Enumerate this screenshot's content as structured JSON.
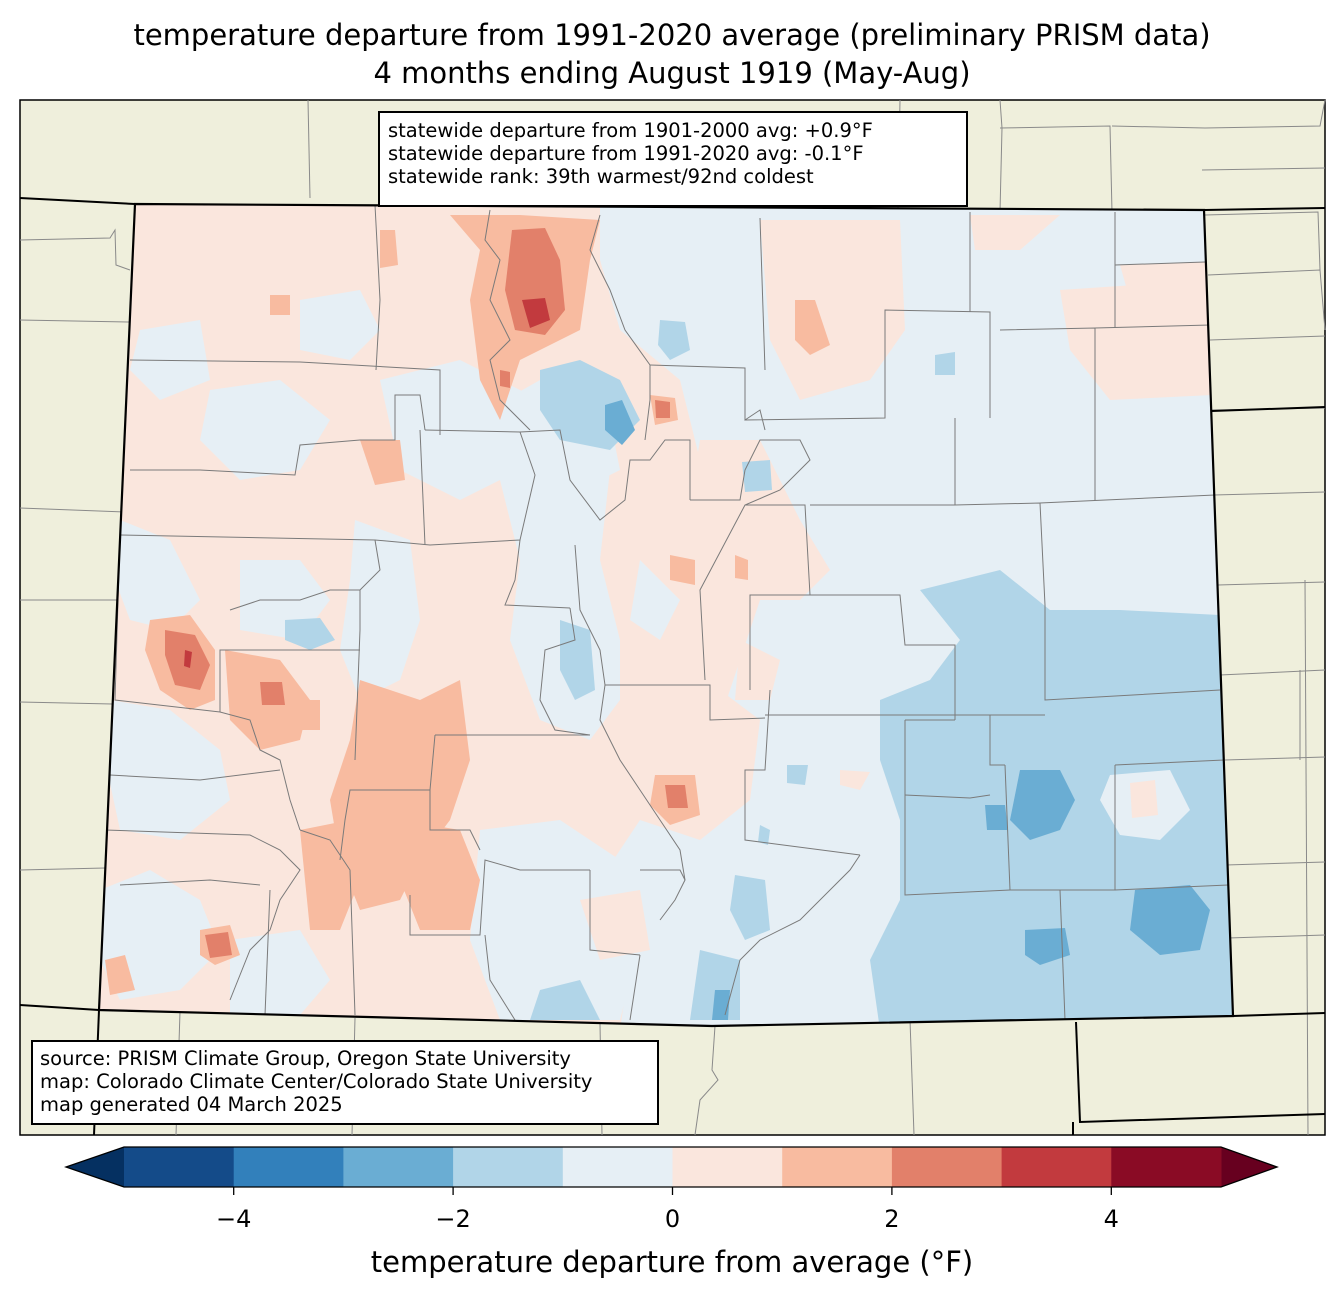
{
  "title": {
    "line1": "temperature departure from 1991-2020 average (preliminary PRISM data)",
    "line2": "4 months ending August 1919 (May-Aug)"
  },
  "stats": {
    "line1": "statewide departure from 1901-2000 avg: +0.9°F",
    "line2": "statewide departure from 1991-2020 avg: -0.1°F",
    "line3": "statewide rank: 39th warmest/92nd coldest"
  },
  "source": {
    "line1": "source: PRISM Climate Group, Oregon State University",
    "line2": "map: Colorado Climate Center/Colorado State University",
    "line3": "map generated 04 March 2025"
  },
  "colorbar": {
    "title": "temperature departure from average (°F)",
    "range": [
      -5,
      5
    ],
    "step": 1,
    "ticks": [
      -4,
      -2,
      0,
      2,
      4
    ],
    "tick_labels": [
      "−4",
      "−2",
      "0",
      "2",
      "4"
    ],
    "under_color": "#053061",
    "over_color": "#67001f",
    "colors": [
      "#144b89",
      "#3280bb",
      "#6aadd3",
      "#b1d5e8",
      "#e6eff5",
      "#fae6dd",
      "#f8bba0",
      "#e2806a",
      "#c23a3e",
      "#8a0b25"
    ]
  },
  "map_colors": {
    "land": "#efefdc",
    "neutral_warm": "#fae6dd",
    "neutral_cool": "#e6eff5"
  }
}
